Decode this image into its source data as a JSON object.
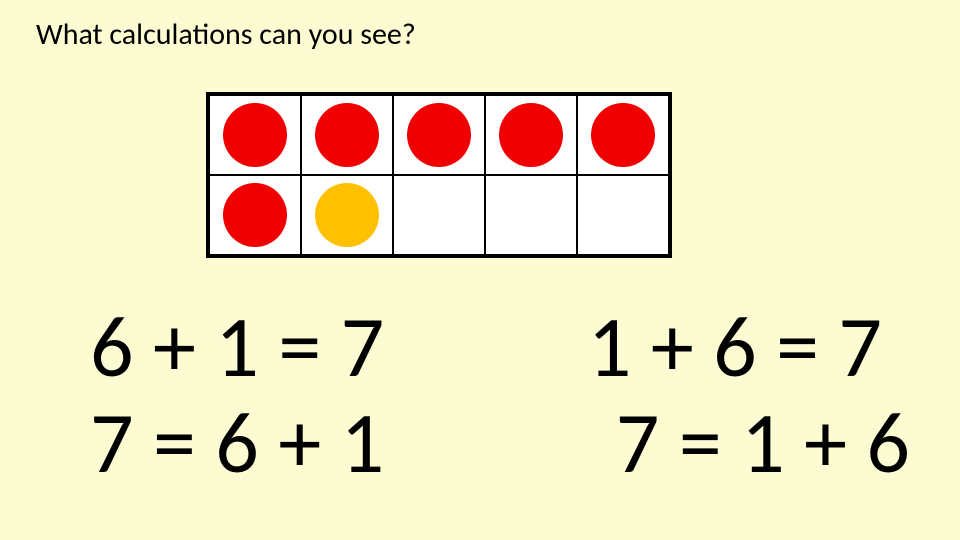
{
  "title": "What calculations can you see?",
  "tenframe": {
    "rows": 2,
    "cols": 5,
    "cell_border_color": "#000000",
    "cell_background": "#ffffff",
    "dot_diameter": 64,
    "dots": [
      {
        "row": 0,
        "col": 0,
        "color": "#f00000"
      },
      {
        "row": 0,
        "col": 1,
        "color": "#f00000"
      },
      {
        "row": 0,
        "col": 2,
        "color": "#f00000"
      },
      {
        "row": 0,
        "col": 3,
        "color": "#f00000"
      },
      {
        "row": 0,
        "col": 4,
        "color": "#f00000"
      },
      {
        "row": 1,
        "col": 0,
        "color": "#f00000"
      },
      {
        "row": 1,
        "col": 1,
        "color": "#ffc000"
      }
    ]
  },
  "equations": {
    "left": [
      "6 + 1 = 7",
      "7 = 6 + 1"
    ],
    "right": [
      "1 + 6 = 7",
      "7 = 1 + 6"
    ]
  },
  "style": {
    "background_color": "#fcfbd2",
    "title_fontsize": 30,
    "equation_fontsize": 86,
    "text_color": "#000000"
  }
}
